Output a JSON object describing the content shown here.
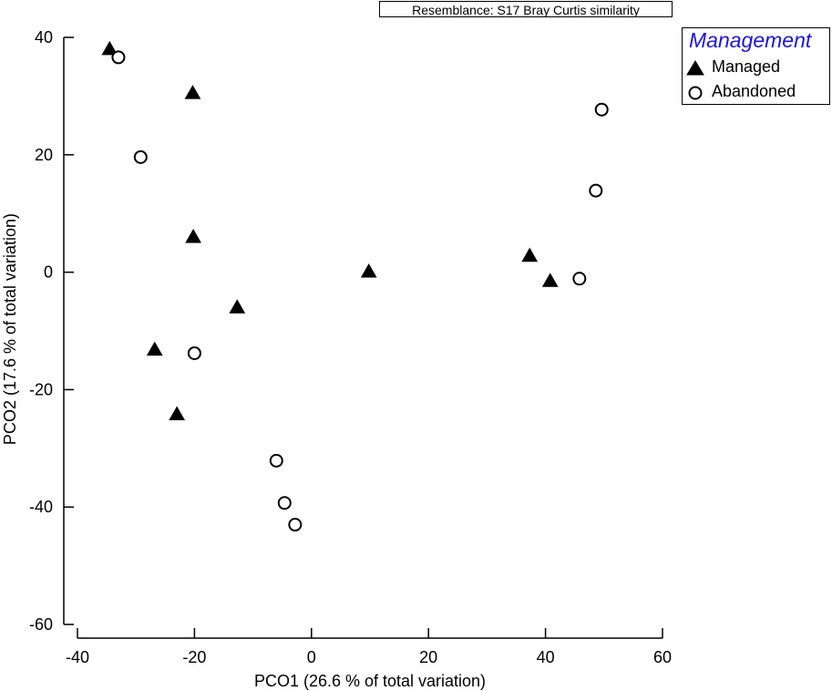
{
  "resemblance_label": "Resemblance: S17 Bray Curtis similarity",
  "legend": {
    "title": "Management",
    "title_color": "#1a14e0",
    "items": [
      {
        "label": "Managed",
        "marker": "filled-triangle"
      },
      {
        "label": "Abandoned",
        "marker": "open-circle"
      }
    ]
  },
  "chart_data": {
    "type": "scatter",
    "title": "",
    "xlabel": "PCO1 (26.6 % of total variation)",
    "ylabel": "PCO2 (17.6 % of total variation)",
    "xlim": [
      -40,
      60
    ],
    "ylim": [
      -60,
      40
    ],
    "xticks": [
      -40,
      -20,
      0,
      20,
      40,
      60
    ],
    "yticks": [
      -60,
      -40,
      -20,
      0,
      20,
      40
    ],
    "grid": false,
    "legend_position": "top-right",
    "series": [
      {
        "name": "Managed",
        "marker": "filled-triangle",
        "points": [
          [
            -34.5,
            38.0
          ],
          [
            -20.3,
            30.5
          ],
          [
            -20.2,
            6.0
          ],
          [
            -12.7,
            -6.0
          ],
          [
            -26.8,
            -13.2
          ],
          [
            -23.0,
            -24.2
          ],
          [
            9.8,
            0.1
          ],
          [
            37.3,
            2.8
          ],
          [
            40.8,
            -1.5
          ]
        ]
      },
      {
        "name": "Abandoned",
        "marker": "open-circle",
        "points": [
          [
            -33.0,
            36.6
          ],
          [
            -29.2,
            19.6
          ],
          [
            -20.0,
            -13.8
          ],
          [
            -6.0,
            -32.1
          ],
          [
            -4.6,
            -39.3
          ],
          [
            -2.8,
            -43.0
          ],
          [
            45.8,
            -1.1
          ],
          [
            48.6,
            13.9
          ],
          [
            49.6,
            27.7
          ]
        ]
      }
    ]
  }
}
